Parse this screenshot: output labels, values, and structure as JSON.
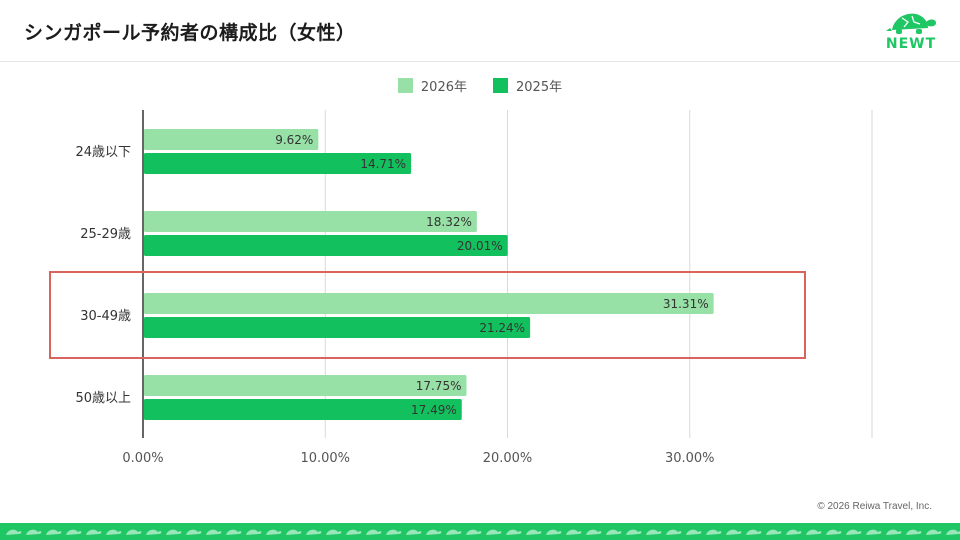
{
  "page": {
    "title": "シンガポール予約者の構成比（女性）"
  },
  "logo": {
    "text": "NEWT",
    "icon": "turtle-icon"
  },
  "copyright": "© 2026 Reiwa Travel, Inc.",
  "colors": {
    "series_2026": "#97e0a6",
    "series_2025": "#12c15d",
    "highlight": "#d9645e",
    "brand": "#1ec764"
  },
  "chart_data": {
    "type": "bar",
    "orientation": "horizontal",
    "categories": [
      "24歳以下",
      "25-29歳",
      "30-49歳",
      "50歳以上"
    ],
    "series": [
      {
        "name": "2026年",
        "values": [
          9.62,
          18.32,
          31.31,
          17.75
        ]
      },
      {
        "name": "2025年",
        "values": [
          14.71,
          20.01,
          21.24,
          17.49
        ]
      }
    ],
    "data_labels": {
      "2026年": [
        "9.62%",
        "18.32%",
        "31.31%",
        "17.75%"
      ],
      "2025年": [
        "14.71%",
        "20.01%",
        "21.24%",
        "17.49%"
      ]
    },
    "x_ticks": [
      "0.00%",
      "10.00%",
      "20.00%",
      "30.00%"
    ],
    "xlim": [
      0,
      40
    ],
    "legend": "top-center",
    "grid": true,
    "highlighted_category": "30-49歳"
  }
}
